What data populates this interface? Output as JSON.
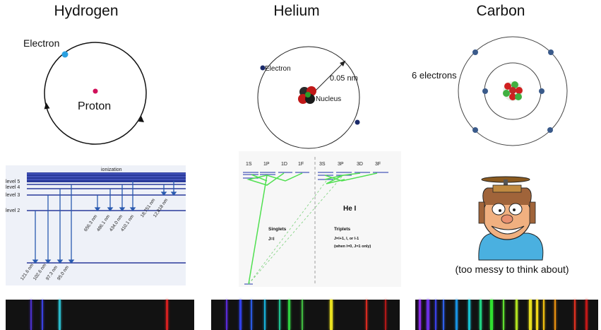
{
  "titles": {
    "hydrogen": "Hydrogen",
    "helium": "Helium",
    "carbon": "Carbon"
  },
  "hydrogen_atom": {
    "electron_label": "Electron",
    "proton_label": "Proton"
  },
  "helium_atom": {
    "electron_label": "Electron",
    "nucleus_label": "Nucleus",
    "radius_label": "0.05 nm"
  },
  "carbon_atom": {
    "electrons_label": "6 electrons"
  },
  "hydrogen_levels": {
    "ionization_label": "ionization",
    "levels": [
      "level 5",
      "level 4",
      "level 3",
      "level 2"
    ],
    "lyman_wavelengths": [
      "121.6 nm",
      "102.6 nm",
      "97.3 nm",
      "95.0 nm"
    ],
    "balmer_wavelengths": [
      "656.3 nm",
      "486.1 nm",
      "434.0 nm",
      "410.1 nm"
    ],
    "paschen_wavelengths": [
      "18,751 nm",
      "12,818 nm"
    ]
  },
  "helium_levels": {
    "singlet_terms": [
      "1S",
      "1P",
      "1D",
      "1F"
    ],
    "triplet_terms": [
      "3S",
      "3P",
      "3D",
      "3F"
    ],
    "title": "He I",
    "singlets_label": "Singlets",
    "singlets_rule": "J=l",
    "triplets_label": "Triplets",
    "triplets_rule": "J=l+1, l, or l-1",
    "triplets_note": "(when l=0, J=1 only)"
  },
  "carbon_caption": "(too messy to think about)",
  "spectra": {
    "hydrogen": [
      {
        "pos": 0.13,
        "color": "#4a2fc8",
        "w": 2
      },
      {
        "pos": 0.19,
        "color": "#3a40e0",
        "w": 2
      },
      {
        "pos": 0.28,
        "color": "#2ab8c8",
        "w": 3
      },
      {
        "pos": 0.85,
        "color": "#d42020",
        "w": 3
      }
    ],
    "helium": [
      {
        "pos": 0.08,
        "color": "#5a2ad8",
        "w": 2
      },
      {
        "pos": 0.15,
        "color": "#3040e8",
        "w": 3
      },
      {
        "pos": 0.21,
        "color": "#2a5ae0",
        "w": 2
      },
      {
        "pos": 0.28,
        "color": "#18b0d8",
        "w": 2
      },
      {
        "pos": 0.36,
        "color": "#20c090",
        "w": 2
      },
      {
        "pos": 0.41,
        "color": "#30d040",
        "w": 3
      },
      {
        "pos": 0.48,
        "color": "#40b840",
        "w": 2
      },
      {
        "pos": 0.63,
        "color": "#e8e020",
        "w": 4
      },
      {
        "pos": 0.82,
        "color": "#d82a20",
        "w": 2
      },
      {
        "pos": 0.92,
        "color": "#b01818",
        "w": 2
      }
    ],
    "carbon": [
      {
        "pos": 0.02,
        "color": "#8a2ae8",
        "w": 3
      },
      {
        "pos": 0.06,
        "color": "#6a30e0",
        "w": 4
      },
      {
        "pos": 0.11,
        "color": "#3a40e8",
        "w": 2
      },
      {
        "pos": 0.15,
        "color": "#2f60e8",
        "w": 2
      },
      {
        "pos": 0.22,
        "color": "#1890e0",
        "w": 3
      },
      {
        "pos": 0.29,
        "color": "#18c0d0",
        "w": 3
      },
      {
        "pos": 0.35,
        "color": "#20d080",
        "w": 3
      },
      {
        "pos": 0.41,
        "color": "#30e030",
        "w": 4
      },
      {
        "pos": 0.48,
        "color": "#60e030",
        "w": 2
      },
      {
        "pos": 0.55,
        "color": "#b0e020",
        "w": 3
      },
      {
        "pos": 0.62,
        "color": "#e8e020",
        "w": 4
      },
      {
        "pos": 0.66,
        "color": "#f0d818",
        "w": 3
      },
      {
        "pos": 0.7,
        "color": "#f0c010",
        "w": 2
      },
      {
        "pos": 0.76,
        "color": "#e89010",
        "w": 2
      },
      {
        "pos": 0.87,
        "color": "#e03020",
        "w": 2
      },
      {
        "pos": 0.93,
        "color": "#c01818",
        "w": 3
      }
    ]
  }
}
